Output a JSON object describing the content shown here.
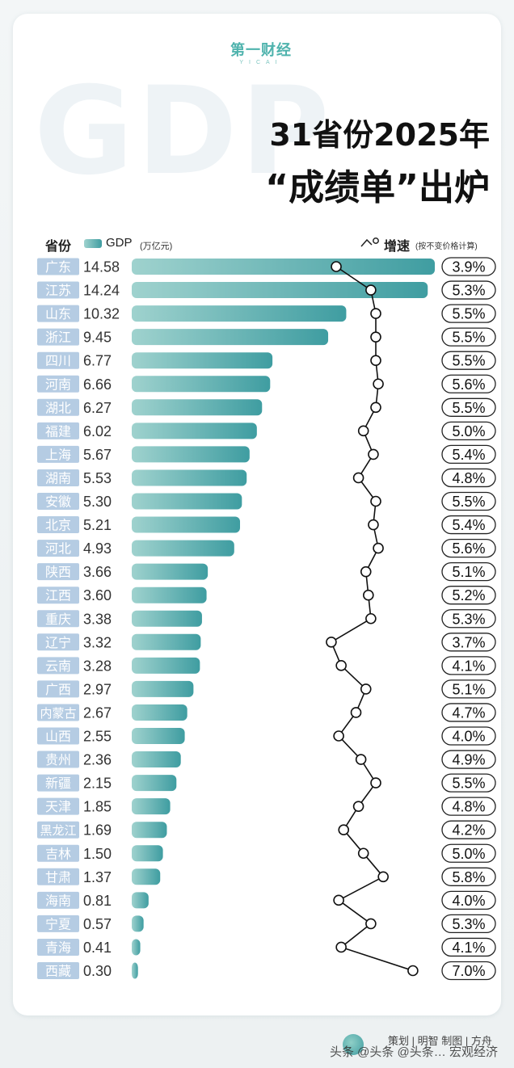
{
  "logo": {
    "main": "第一财经",
    "sub": "YICAI"
  },
  "background_watermark": "GDP",
  "title": {
    "line1": "31省份2025年",
    "line2": "“成绩单”出炉"
  },
  "legend": {
    "province": "省份",
    "gdp": "GDP",
    "gdp_unit": "(万亿元)",
    "growth": "增速",
    "growth_note": "(按不变价格计算)"
  },
  "colors": {
    "bar_start": "#9fd2ce",
    "bar_end": "#3f9da1",
    "label_bg": "#b5cce3",
    "line": "#111111"
  },
  "chart_data": {
    "type": "bar",
    "categories": [
      "广东",
      "江苏",
      "山东",
      "浙江",
      "四川",
      "河南",
      "湖北",
      "福建",
      "上海",
      "湖南",
      "安徽",
      "北京",
      "河北",
      "陕西",
      "江西",
      "重庆",
      "辽宁",
      "云南",
      "广西",
      "内蒙古",
      "山西",
      "贵州",
      "新疆",
      "天津",
      "黑龙江",
      "吉林",
      "甘肃",
      "海南",
      "宁夏",
      "青海",
      "西藏"
    ],
    "series": [
      {
        "name": "GDP",
        "unit": "万亿元",
        "values": [
          14.58,
          14.24,
          10.32,
          9.45,
          6.77,
          6.66,
          6.27,
          6.02,
          5.67,
          5.53,
          5.3,
          5.21,
          4.93,
          3.66,
          3.6,
          3.38,
          3.32,
          3.28,
          2.97,
          2.67,
          2.55,
          2.36,
          2.15,
          1.85,
          1.69,
          1.5,
          1.37,
          0.81,
          0.57,
          0.41,
          0.3
        ],
        "labels": [
          "14.58",
          "14.24",
          "10.32",
          "9.45",
          "6.77",
          "6.66",
          "6.27",
          "6.02",
          "5.67",
          "5.53",
          "5.30",
          "5.21",
          "4.93",
          "3.66",
          "3.60",
          "3.38",
          "3.32",
          "3.28",
          "2.97",
          "2.67",
          "2.55",
          "2.36",
          "2.15",
          "1.85",
          "1.69",
          "1.50",
          "1.37",
          "0.81",
          "0.57",
          "0.41",
          "0.30"
        ]
      },
      {
        "name": "增速",
        "unit": "%",
        "type": "line",
        "values": [
          3.9,
          5.3,
          5.5,
          5.5,
          5.5,
          5.6,
          5.5,
          5.0,
          5.4,
          4.8,
          5.5,
          5.4,
          5.6,
          5.1,
          5.2,
          5.3,
          3.7,
          4.1,
          5.1,
          4.7,
          4.0,
          4.9,
          5.5,
          4.8,
          4.2,
          5.0,
          5.8,
          4.0,
          5.3,
          4.1,
          7.0
        ],
        "labels": [
          "3.9%",
          "5.3%",
          "5.5%",
          "5.5%",
          "5.5%",
          "5.6%",
          "5.5%",
          "5.0%",
          "5.4%",
          "4.8%",
          "5.5%",
          "5.4%",
          "5.6%",
          "5.1%",
          "5.2%",
          "5.3%",
          "3.7%",
          "4.1%",
          "5.1%",
          "4.7%",
          "4.0%",
          "4.9%",
          "5.5%",
          "4.8%",
          "4.2%",
          "5.0%",
          "5.8%",
          "4.0%",
          "5.3%",
          "4.1%",
          "7.0%"
        ]
      }
    ],
    "orientation": "horizontal",
    "grid": false
  },
  "footer": {
    "credit": "策划 | 明智  制图 | 方舟",
    "watermark": "头条 @头条 @头条… 宏观经济"
  }
}
